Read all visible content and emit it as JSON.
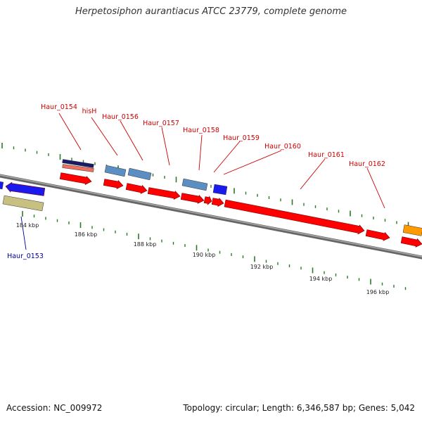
{
  "title": "Herpetosiphon aurantiacus ATCC 23779, complete genome",
  "footer": {
    "accession": "Accession: NC_009972",
    "topology": "Topology: circular; Length: 6,346,587 bp; Genes: 5,042"
  },
  "scale": {
    "unit": "kbp",
    "labels": [
      "184 kbp",
      "186 kbp",
      "188 kbp",
      "190 kbp",
      "192 kbp",
      "194 kbp",
      "196 kbp"
    ]
  },
  "colors": {
    "cds_forward": "#ff0000",
    "cds_highlight_blue": "#1a1aee",
    "feature_steelblue": "#5b8fc4",
    "feature_navy": "#1a1a66",
    "feature_salmon": "#f07060",
    "feature_khaki": "#c8c080",
    "feature_orange": "#ff9900",
    "label_forward": "#cc0000",
    "label_reverse": "#000099",
    "tick": "#2a7a2a",
    "backbone": "#8a8a8a"
  },
  "gene_labels": [
    {
      "text": "Haur_0153",
      "strand": "reverse"
    },
    {
      "text": "Haur_0154",
      "strand": "forward"
    },
    {
      "text": "hisH",
      "strand": "forward"
    },
    {
      "text": "Haur_0156",
      "strand": "forward"
    },
    {
      "text": "Haur_0157",
      "strand": "forward"
    },
    {
      "text": "Haur_0158",
      "strand": "forward"
    },
    {
      "text": "Haur_0159",
      "strand": "forward"
    },
    {
      "text": "Haur_0160",
      "strand": "forward"
    },
    {
      "text": "Haur_0161",
      "strand": "forward"
    },
    {
      "text": "Haur_0162",
      "strand": "forward"
    }
  ]
}
